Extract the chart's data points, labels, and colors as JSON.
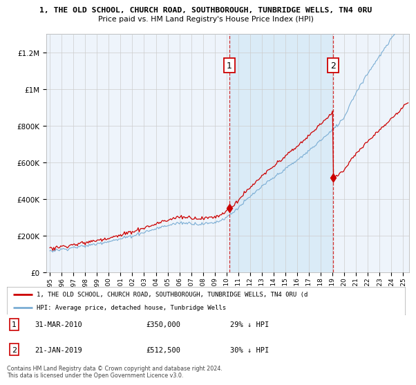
{
  "title_line1": "1, THE OLD SCHOOL, CHURCH ROAD, SOUTHBOROUGH, TUNBRIDGE WELLS, TN4 0RU",
  "title_line2": "Price paid vs. HM Land Registry's House Price Index (HPI)",
  "sale1_year": 2010.25,
  "sale1_price": 350000,
  "sale2_year": 2019.055,
  "sale2_price": 512500,
  "hpi_color": "#7aadd4",
  "price_color": "#cc0000",
  "vline_color": "#cc0000",
  "shade_color": "#d8eaf7",
  "background_color": "#ffffff",
  "grid_color": "#cccccc",
  "ylim": [
    0,
    1300000
  ],
  "xlim_start": 1994.7,
  "xlim_end": 2025.5,
  "legend_label_red": "1, THE OLD SCHOOL, CHURCH ROAD, SOUTHBOROUGH, TUNBRIDGE WELLS, TN4 0RU (d",
  "legend_label_blue": "HPI: Average price, detached house, Tunbridge Wells",
  "footer": "Contains HM Land Registry data © Crown copyright and database right 2024.\nThis data is licensed under the Open Government Licence v3.0.",
  "sale1_text": "31-MAR-2010",
  "sale1_price_text": "£350,000",
  "sale1_pct_text": "29% ↓ HPI",
  "sale2_text": "21-JAN-2019",
  "sale2_price_text": "£512,500",
  "sale2_pct_text": "30% ↓ HPI"
}
